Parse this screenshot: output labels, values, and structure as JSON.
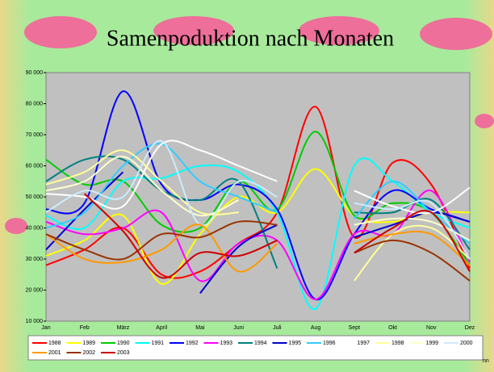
{
  "chart_data": {
    "type": "line",
    "title": "Samenpoduktion nach Monaten",
    "categories": [
      "Jan",
      "Feb",
      "März",
      "April",
      "Mai",
      "Juni",
      "Juli",
      "Aug",
      "Sept",
      "Okt",
      "Nov",
      "Dez"
    ],
    "ylim": [
      10000,
      90000
    ],
    "yticks": [
      {
        "value": 10000,
        "label": "10 000"
      },
      {
        "value": 20000,
        "label": "20 000"
      },
      {
        "value": 30000,
        "label": "30 000"
      },
      {
        "value": 40000,
        "label": "40 000"
      },
      {
        "value": 50000,
        "label": "50 000"
      },
      {
        "value": 60000,
        "label": "60 000"
      },
      {
        "value": 70000,
        "label": "70 000"
      },
      {
        "value": 80000,
        "label": "80 000"
      },
      {
        "value": 90000,
        "label": "90 000"
      }
    ],
    "series": [
      {
        "name": "1988",
        "color": "#ff0000",
        "values": [
          28000,
          33000,
          40000,
          25000,
          26000,
          35000,
          45000,
          79000,
          37000,
          61000,
          54000,
          27000
        ]
      },
      {
        "name": "1989",
        "color": "#ffff00",
        "values": [
          31000,
          36000,
          44000,
          22000,
          38000,
          50000,
          45000,
          59000,
          44000,
          42000,
          45000,
          45000
        ]
      },
      {
        "name": "1990",
        "color": "#00cc00",
        "values": [
          62000,
          54000,
          55000,
          41000,
          40000,
          55000,
          46000,
          71000,
          44000,
          48000,
          45000,
          28000
        ]
      },
      {
        "name": "1991",
        "color": "#00ffff",
        "values": [
          44000,
          40000,
          55000,
          56000,
          60000,
          58000,
          45000,
          14000,
          60000,
          55000,
          45000,
          40000
        ]
      },
      {
        "name": "1992",
        "color": "#0000ff",
        "values": [
          46000,
          48000,
          84000,
          54000,
          49000,
          54000,
          46000,
          17000,
          38000,
          52000,
          46000,
          42000
        ]
      },
      {
        "name": "1993",
        "color": "#ff00ff",
        "values": [
          42000,
          38000,
          40000,
          45000,
          23000,
          35000,
          36000,
          17000,
          38000,
          38000,
          52000,
          29000
        ]
      },
      {
        "name": "1994",
        "color": "#008080",
        "values": [
          55000,
          62000,
          62000,
          52000,
          49000,
          55000,
          27000,
          null,
          45000,
          45000,
          49000,
          33000
        ]
      },
      {
        "name": "1995",
        "color": "#0000cc",
        "values": [
          33000,
          46000,
          58000,
          null,
          19000,
          34000,
          41000,
          null,
          37000,
          41000,
          45000,
          42000
        ]
      },
      {
        "name": "1996",
        "color": "#33ccff",
        "values": [
          40000,
          45000,
          60000,
          67000,
          55000,
          50000,
          45000,
          null,
          43000,
          55000,
          45000,
          35000
        ]
      },
      {
        "name": "1997",
        "color": "#ffffff",
        "values": [
          51000,
          50000,
          47000,
          67000,
          65000,
          60000,
          55000,
          null,
          52000,
          47000,
          45000,
          53000
        ]
      },
      {
        "name": "1998",
        "color": "#ffff99",
        "values": [
          54000,
          58000,
          65000,
          55000,
          45000,
          45000,
          null,
          null,
          23000,
          38000,
          40000,
          30000
        ]
      },
      {
        "name": "1999",
        "color": "#ffffcc",
        "values": [
          52000,
          55000,
          63000,
          52000,
          44000,
          49000,
          null,
          null,
          41000,
          43000,
          42000,
          36000
        ]
      },
      {
        "name": "2000",
        "color": "#ccecff",
        "values": [
          45000,
          52000,
          50000,
          68000,
          41000,
          55000,
          50000,
          null,
          48000,
          46000,
          48000,
          30000
        ]
      },
      {
        "name": "2001",
        "color": "#ff9900",
        "values": [
          38000,
          30000,
          29000,
          33000,
          41000,
          26000,
          35000,
          null,
          35000,
          38000,
          38000,
          28000
        ]
      },
      {
        "name": "2002",
        "color": "#993300",
        "values": [
          38000,
          33000,
          30000,
          38000,
          37000,
          42000,
          41000,
          null,
          32000,
          36000,
          32000,
          23000
        ]
      },
      {
        "name": "2003",
        "color": "#cc0000",
        "values": [
          null,
          51000,
          39000,
          24000,
          32000,
          31000,
          36000,
          null,
          32000,
          40000,
          45000,
          26000
        ]
      }
    ],
    "annotation": "nn"
  }
}
